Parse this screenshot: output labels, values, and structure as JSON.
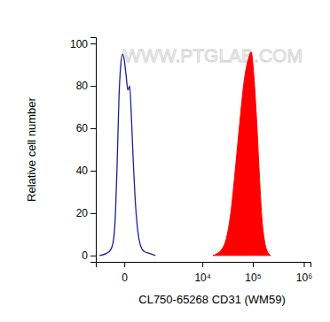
{
  "chart_data": {
    "type": "line",
    "x_label": "CL750-65268 CD31 (WM59)",
    "y_label": "Relative cell number",
    "annotations": [
      "WWW.PTGLAB.COM"
    ],
    "log": "x",
    "xlim": [
      -800,
      1350000
    ],
    "xticks": [
      0,
      {
        "value": 10000,
        "label": "10⁴"
      },
      {
        "value": 100000,
        "label": "10⁵"
      },
      {
        "value": 1000000,
        "label": "10⁶"
      }
    ],
    "ylim": [
      -3,
      103
    ],
    "yticks": [
      0,
      20,
      40,
      60,
      80,
      100
    ],
    "series": [
      {
        "type": "line",
        "color": "#1f1f9a",
        "x": [
          -630,
          -374,
          -251,
          -188,
          -150,
          -115,
          -83,
          -53,
          -25,
          0,
          25,
          53,
          83,
          115,
          150,
          188,
          251,
          322,
          430,
          630,
          932
        ],
        "values": [
          0,
          1,
          3,
          8,
          20,
          45,
          75,
          90,
          95,
          92,
          85,
          78,
          80,
          65,
          45,
          28,
          12,
          5,
          2,
          1,
          0
        ]
      },
      {
        "type": "area",
        "color": "#ff0000",
        "x": [
          16350,
          20035,
          24540,
          30040,
          36750,
          44960,
          54980,
          67220,
          82170,
          92690,
          104550,
          117910,
          132980,
          149970,
          169150,
          190750,
          223900
        ],
        "values": [
          0,
          1,
          3,
          8,
          20,
          40,
          62,
          82,
          93,
          96,
          85,
          65,
          40,
          18,
          7,
          2,
          0
        ]
      }
    ]
  }
}
